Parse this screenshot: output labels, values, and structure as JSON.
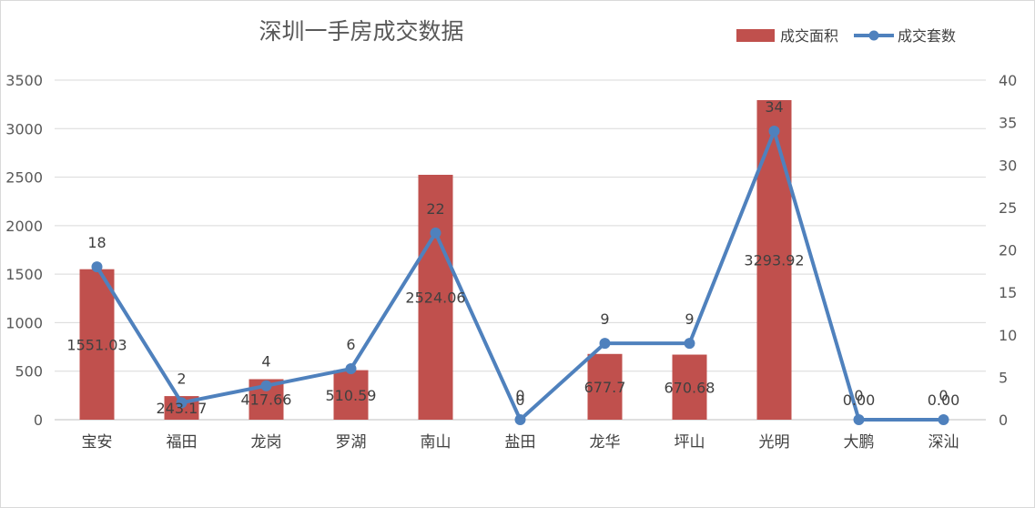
{
  "chart_data": {
    "type": "bar",
    "title": "深圳一手房成交数据",
    "categories": [
      "宝安",
      "福田",
      "龙岗",
      "罗湖",
      "南山",
      "盐田",
      "龙华",
      "坪山",
      "光明",
      "大鹏",
      "深汕"
    ],
    "series": [
      {
        "name": "成交面积",
        "type": "bar",
        "axis": "left",
        "values": [
          1551.03,
          243.17,
          417.66,
          510.59,
          2524.06,
          0,
          677.7,
          670.68,
          3293.92,
          0,
          0
        ],
        "labels": [
          "1551.03",
          "243.17",
          "417.66",
          "510.59",
          "2524.06",
          "0",
          "677.7",
          "670.68",
          "3293.92",
          "0.00",
          "0.00"
        ]
      },
      {
        "name": "成交套数",
        "type": "line",
        "axis": "right",
        "values": [
          18,
          2,
          4,
          6,
          22,
          0,
          9,
          9,
          34,
          0,
          0
        ],
        "labels": [
          "18",
          "2",
          "4",
          "6",
          "22",
          "0",
          "9",
          "9",
          "34",
          "0",
          "0"
        ]
      }
    ],
    "y_left": {
      "min": 0,
      "max": 3500,
      "ticks": [
        0,
        500,
        1000,
        1500,
        2000,
        2500,
        3000,
        3500
      ]
    },
    "y_right": {
      "min": 0,
      "max": 40,
      "ticks": [
        0,
        5,
        10,
        15,
        20,
        25,
        30,
        35,
        40
      ]
    },
    "grid": true,
    "legend_position": "top-right",
    "colors": {
      "bar": "#c0504d",
      "line": "#4f81bd",
      "grid": "#d9d9d9",
      "text": "#595959"
    }
  }
}
